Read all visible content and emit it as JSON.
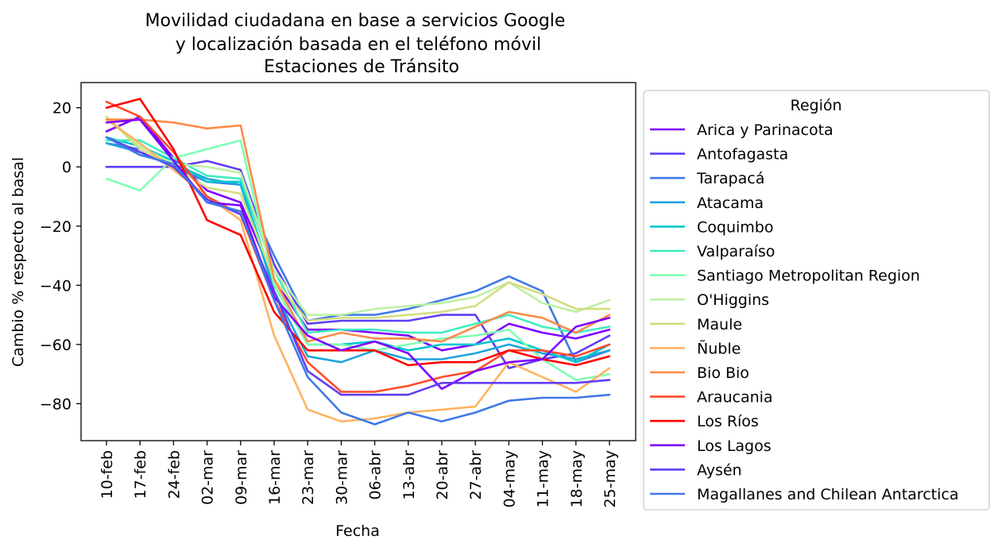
{
  "chart_data": {
    "type": "line",
    "title": [
      "Movilidad ciudadana en base a servicios Google",
      "y localización basada en el teléfono móvil",
      "Estaciones de Tránsito"
    ],
    "xlabel": "Fecha",
    "ylabel": "Cambio % respecto al basal",
    "categories": [
      "10-feb",
      "17-feb",
      "24-feb",
      "02-mar",
      "09-mar",
      "16-mar",
      "23-mar",
      "30-mar",
      "06-abr",
      "13-abr",
      "20-abr",
      "27-abr",
      "04-may",
      "11-may",
      "18-may",
      "25-may"
    ],
    "yticks": [
      20,
      0,
      -20,
      -40,
      -60,
      -80
    ],
    "ytick_labels": [
      "20",
      "0",
      "−20",
      "−40",
      "−60",
      "−80"
    ],
    "ylim": [
      -92.5,
      28.5
    ],
    "grid": false,
    "legend": {
      "title": "Región",
      "placement": "outside-right"
    },
    "series": [
      {
        "name": "Arica y Parinacota",
        "color": "#7f00ff",
        "values": [
          12,
          17,
          3,
          -8,
          -12,
          -38,
          -55,
          -55,
          -56,
          -57,
          -62,
          -60,
          -53,
          -56,
          -58,
          -55
        ]
      },
      {
        "name": "Antofagasta",
        "color": "#603df3",
        "values": [
          0,
          0,
          0,
          2,
          -1,
          -33,
          -53,
          -52,
          -52,
          -52,
          -50,
          -50,
          -68,
          -65,
          -63,
          -57
        ]
      },
      {
        "name": "Tarapacá",
        "color": "#3f79e8",
        "values": [
          8,
          6,
          0,
          -5,
          -6,
          -30,
          -52,
          -50,
          -50,
          -48,
          -45,
          -42,
          -37,
          -42,
          -66,
          -62
        ]
      },
      {
        "name": "Atacama",
        "color": "#1fa4db",
        "values": [
          8,
          5,
          1,
          -4,
          -6,
          -42,
          -64,
          -66,
          -62,
          -65,
          -65,
          -63,
          -60,
          -63,
          -65,
          -62
        ]
      },
      {
        "name": "Coquimbo",
        "color": "#02c8ce",
        "values": [
          10,
          7,
          2,
          -5,
          -5,
          -40,
          -60,
          -60,
          -59,
          -62,
          -60,
          -60,
          -58,
          -62,
          -66,
          -60
        ]
      },
      {
        "name": "Valparaíso",
        "color": "#40ebc1",
        "values": [
          9,
          9,
          3,
          -3,
          -4,
          -35,
          -56,
          -55,
          -55,
          -56,
          -56,
          -53,
          -50,
          -54,
          -56,
          -54
        ]
      },
      {
        "name": "Santiago Metropolitan Region",
        "color": "#80feb3",
        "values": [
          -4,
          -8,
          3,
          6,
          9,
          -40,
          -60,
          -60,
          -62,
          -60,
          -58,
          -57,
          -55,
          -65,
          -72,
          -70
        ]
      },
      {
        "name": "O'Higgins",
        "color": "#bff0a4",
        "values": [
          17,
          7,
          1,
          0,
          -2,
          -35,
          -50,
          -50,
          -48,
          -47,
          -46,
          -44,
          -39,
          -46,
          -49,
          -45
        ]
      },
      {
        "name": "Maule",
        "color": "#d4dd80",
        "values": [
          17,
          6,
          0,
          -7,
          -9,
          -38,
          -52,
          -51,
          -51,
          -50,
          -49,
          -47,
          -39,
          -43,
          -48,
          -48
        ]
      },
      {
        "name": "Ñuble",
        "color": "#ffb360",
        "values": [
          16,
          8,
          -1,
          -10,
          -18,
          -57,
          -82,
          -86,
          -85,
          -83,
          -82,
          -81,
          -66,
          -71,
          -76,
          -68
        ]
      },
      {
        "name": "Bio Bio",
        "color": "#ff8a48",
        "values": [
          16,
          16,
          15,
          13,
          14,
          -38,
          -59,
          -56,
          -58,
          -58,
          -59,
          -54,
          -49,
          -51,
          -56,
          -50
        ]
      },
      {
        "name": "Araucania",
        "color": "#ff4b2a",
        "values": [
          22,
          17,
          5,
          -10,
          -16,
          -45,
          -66,
          -76,
          -76,
          -74,
          -71,
          -69,
          -62,
          -62,
          -64,
          -60
        ]
      },
      {
        "name": "Los Ríos",
        "color": "#ff0000",
        "values": [
          20,
          23,
          6,
          -18,
          -23,
          -49,
          -62,
          -62,
          -62,
          -67,
          -66,
          -66,
          -62,
          -65,
          -67,
          -64
        ]
      },
      {
        "name": "Los Lagos",
        "color": "#7f00ff",
        "values": [
          15,
          16,
          2,
          -12,
          -13,
          -44,
          -57,
          -62,
          -59,
          -63,
          -75,
          -69,
          -66,
          -65,
          -54,
          -51
        ]
      },
      {
        "name": "Aysén",
        "color": "#603df3",
        "values": [
          10,
          5,
          0,
          -11,
          -16,
          -42,
          -69,
          -77,
          -77,
          -77,
          -73,
          -73,
          -73,
          -73,
          -73,
          -72
        ]
      },
      {
        "name": "Magallanes and Chilean Antarctica",
        "color": "#3f79e8",
        "values": [
          10,
          4,
          1,
          -12,
          -15,
          -45,
          -71,
          -83,
          -87,
          -83,
          -86,
          -83,
          -79,
          -78,
          -78,
          -77
        ]
      }
    ]
  }
}
